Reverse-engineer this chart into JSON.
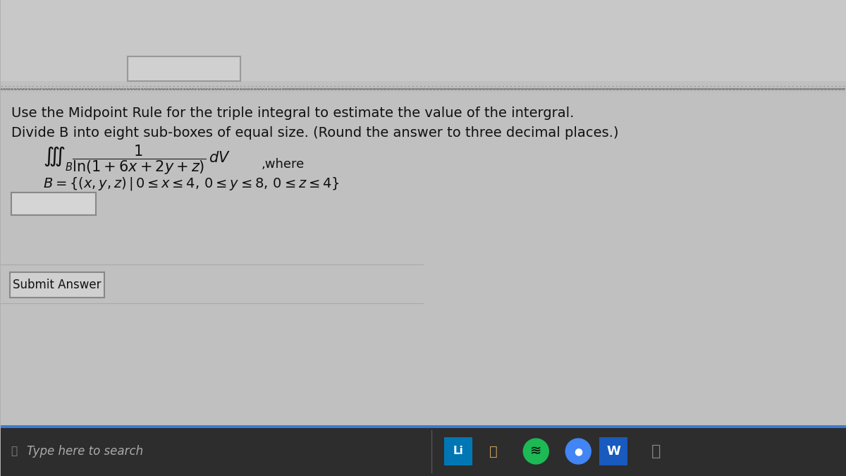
{
  "bg_color_top": "#c8c8c8",
  "bg_color_content": "#b8b8b8",
  "bg_color_taskbar": "#222222",
  "bg_color_taskbar_strip": "#3a7bd5",
  "text_color": "#111111",
  "dotted_line_color": "#888888",
  "line1": "Use the Midpoint Rule for the triple integral to estimate the value of the intergral.",
  "line2": "Divide B into eight sub-boxes of equal size. (Round the answer to three decimal places.)",
  "integral_main": "$\\iiint_B \\dfrac{1}{\\ln(1+6x+2y+z)}\\, dV$",
  "where_text": ",where",
  "B_set": "$B = \\{(x, y, z) \\mid 0 \\leq x \\leq 4, 0 \\leq y \\leq 8, 0 \\leq z \\leq 4\\}$",
  "submit_text": "Submit Answer",
  "search_text": "Type here to search",
  "input_box_color": "#d0d0d0",
  "input_box_border": "#888888"
}
